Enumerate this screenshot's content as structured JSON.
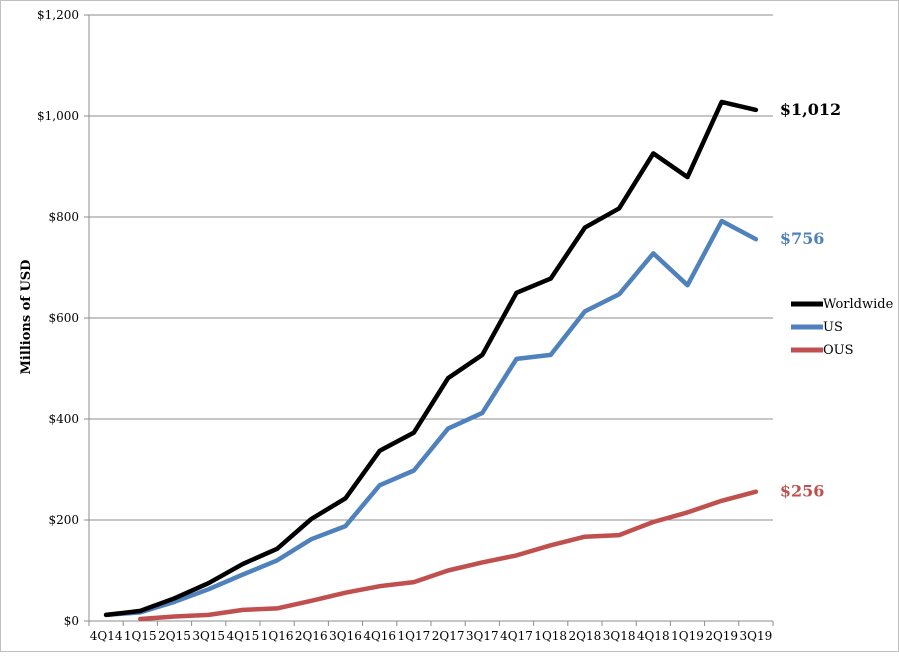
{
  "chart_data": {
    "type": "line",
    "title": "",
    "xlabel": "",
    "ylabel": "Millions of USD",
    "ylim": [
      0,
      1200
    ],
    "yticks": [
      0,
      200,
      400,
      600,
      800,
      1000,
      1200
    ],
    "ytick_labels": [
      "$0",
      "$200",
      "$400",
      "$600",
      "$800",
      "$1,000",
      "$1,200"
    ],
    "grid": "horizontal",
    "legend_position": "right",
    "categories": [
      "4Q14",
      "1Q15",
      "2Q15",
      "3Q15",
      "4Q15",
      "1Q16",
      "2Q16",
      "3Q16",
      "4Q16",
      "1Q17",
      "2Q17",
      "3Q17",
      "4Q17",
      "1Q18",
      "2Q18",
      "3Q18",
      "4Q18",
      "1Q19",
      "2Q19",
      "3Q19"
    ],
    "series": [
      {
        "name": "Worldwide",
        "color": "#000000",
        "values": [
          12,
          20,
          45,
          75,
          113,
          143,
          202,
          243,
          337,
          373,
          481,
          527,
          650,
          678,
          779,
          817,
          926,
          879,
          1028,
          1012
        ],
        "end_label": "$1,012"
      },
      {
        "name": "US",
        "color": "#4f81bd",
        "values": [
          12,
          17,
          38,
          63,
          92,
          120,
          162,
          188,
          269,
          298,
          381,
          412,
          519,
          527,
          613,
          647,
          728,
          665,
          792,
          756
        ],
        "end_label": "$756"
      },
      {
        "name": "OUS",
        "color": "#c0504d",
        "values": [
          null,
          4,
          9,
          12,
          22,
          25,
          40,
          56,
          69,
          77,
          100,
          116,
          130,
          150,
          167,
          170,
          196,
          215,
          238,
          256
        ],
        "end_label": "$256"
      }
    ]
  }
}
